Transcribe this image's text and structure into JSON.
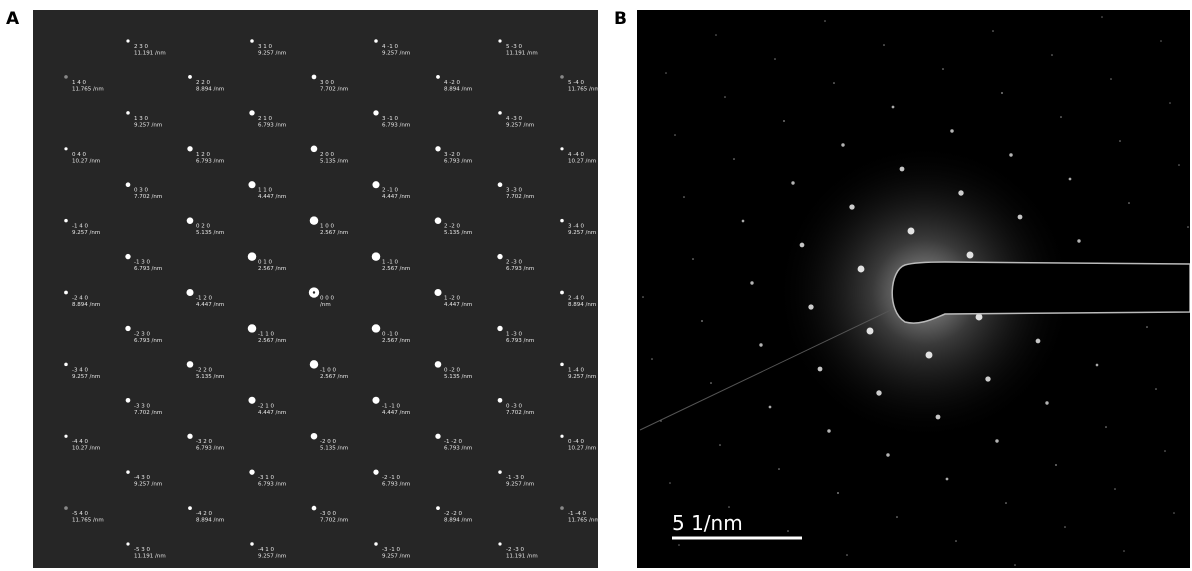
{
  "panel_a": {
    "label": "A",
    "rows": [
      [
        {
          "hkl": "2 3 0",
          "d": "11.191 /nm"
        },
        {
          "hkl": "3 1 0",
          "d": "9.257 /nm"
        },
        {
          "hkl": "4 -1 0",
          "d": "9.257 /nm"
        },
        {
          "hkl": "5 -3 0",
          "d": "11.191 /nm"
        }
      ],
      [
        {
          "hkl": "1 4 0",
          "d": "11.765 /nm"
        },
        {
          "hkl": "2 2 0",
          "d": "8.894 /nm"
        },
        {
          "hkl": "3 0 0",
          "d": "7.702 /nm"
        },
        {
          "hkl": "4 -2 0",
          "d": "8.894 /nm"
        },
        {
          "hkl": "5 -4 0",
          "d": "11.765 /nm"
        }
      ],
      [
        {
          "hkl": "1 3 0",
          "d": "9.257 /nm"
        },
        {
          "hkl": "2 1 0",
          "d": "6.793 /nm"
        },
        {
          "hkl": "3 -1 0",
          "d": "6.793 /nm"
        },
        {
          "hkl": "4 -3 0",
          "d": "9.257 /nm"
        }
      ],
      [
        {
          "hkl": "0 4 0",
          "d": "10.27 /nm"
        },
        {
          "hkl": "1 2 0",
          "d": "6.793 /nm"
        },
        {
          "hkl": "2 0 0",
          "d": "5.135 /nm"
        },
        {
          "hkl": "3 -2 0",
          "d": "6.793 /nm"
        },
        {
          "hkl": "4 -4 0",
          "d": "10.27 /nm"
        }
      ],
      [
        {
          "hkl": "0 3 0",
          "d": "7.702 /nm"
        },
        {
          "hkl": "1 1 0",
          "d": "4.447 /nm"
        },
        {
          "hkl": "2 -1 0",
          "d": "4.447 /nm"
        },
        {
          "hkl": "3 -3 0",
          "d": "7.702 /nm"
        }
      ],
      [
        {
          "hkl": "-1 4 0",
          "d": "9.257 /nm"
        },
        {
          "hkl": "0 2 0",
          "d": "5.135 /nm"
        },
        {
          "hkl": "1 0 0",
          "d": "2.567 /nm"
        },
        {
          "hkl": "2 -2 0",
          "d": "5.135 /nm"
        },
        {
          "hkl": "3 -4 0",
          "d": "9.257 /nm"
        }
      ],
      [
        {
          "hkl": "-1 3 0",
          "d": "6.793 /nm"
        },
        {
          "hkl": "0 1 0",
          "d": "2.567 /nm"
        },
        {
          "hkl": "1 -1 0",
          "d": "2.567 /nm"
        },
        {
          "hkl": "2 -3 0",
          "d": "6.793 /nm"
        }
      ],
      [
        {
          "hkl": "-2 4 0",
          "d": "8.894 /nm"
        },
        {
          "hkl": "-1 2 0",
          "d": "4.447 /nm"
        },
        {
          "hkl": "0 0 0",
          "d": "/nm"
        },
        {
          "hkl": "1 -2 0",
          "d": "4.447 /nm"
        },
        {
          "hkl": "2 -4 0",
          "d": "8.894 /nm"
        }
      ],
      [
        {
          "hkl": "-2 3 0",
          "d": "6.793 /nm"
        },
        {
          "hkl": "-1 1 0",
          "d": "2.567 /nm"
        },
        {
          "hkl": "0 -1 0",
          "d": "2.567 /nm"
        },
        {
          "hkl": "1 -3 0",
          "d": "6.793 /nm"
        }
      ],
      [
        {
          "hkl": "-3 4 0",
          "d": "9.257 /nm"
        },
        {
          "hkl": "-2 2 0",
          "d": "5.135 /nm"
        },
        {
          "hkl": "-1 0 0",
          "d": "2.567 /nm"
        },
        {
          "hkl": "0 -2 0",
          "d": "5.135 /nm"
        },
        {
          "hkl": "1 -4 0",
          "d": "9.257 /nm"
        }
      ],
      [
        {
          "hkl": "-3 3 0",
          "d": "7.702 /nm"
        },
        {
          "hkl": "-2 1 0",
          "d": "4.447 /nm"
        },
        {
          "hkl": "-1 -1 0",
          "d": "4.447 /nm"
        },
        {
          "hkl": "0 -3 0",
          "d": "7.702 /nm"
        }
      ],
      [
        {
          "hkl": "-4 4 0",
          "d": "10.27 /nm"
        },
        {
          "hkl": "-3 2 0",
          "d": "6.793 /nm"
        },
        {
          "hkl": "-2 0 0",
          "d": "5.135 /nm"
        },
        {
          "hkl": "-1 -2 0",
          "d": "6.793 /nm"
        },
        {
          "hkl": "0 -4 0",
          "d": "10.27 /nm"
        }
      ],
      [
        {
          "hkl": "-4 3 0",
          "d": "9.257 /nm"
        },
        {
          "hkl": "-3 1 0",
          "d": "6.793 /nm"
        },
        {
          "hkl": "-2 -1 0",
          "d": "6.793 /nm"
        },
        {
          "hkl": "-1 -3 0",
          "d": "9.257 /nm"
        }
      ],
      [
        {
          "hkl": "-5 4 0",
          "d": "11.765 /nm"
        },
        {
          "hkl": "-4 2 0",
          "d": "8.894 /nm"
        },
        {
          "hkl": "-3 0 0",
          "d": "7.702 /nm"
        },
        {
          "hkl": "-2 -2 0",
          "d": "8.894 /nm"
        },
        {
          "hkl": "-1 -4 0",
          "d": "11.765 /nm"
        }
      ],
      [
        {
          "hkl": "-5 3 0",
          "d": "11.191 /nm"
        },
        {
          "hkl": "-4 1 0",
          "d": "9.257 /nm"
        },
        {
          "hkl": "-3 -1 0",
          "d": "9.257 /nm"
        },
        {
          "hkl": "-2 -3 0",
          "d": "11.191 /nm"
        }
      ]
    ]
  },
  "panel_b": {
    "label": "B",
    "scale_bar": "5 1/nm"
  }
}
